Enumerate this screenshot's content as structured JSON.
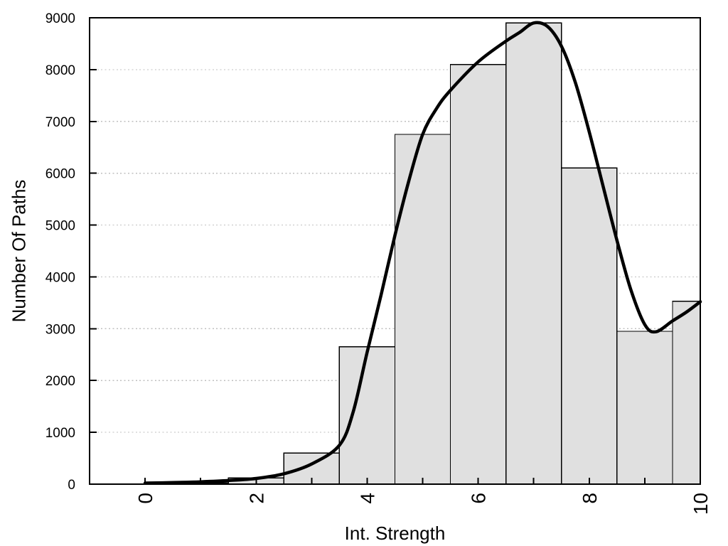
{
  "chart_data": {
    "type": "bar",
    "subtype": "histogram_with_smooth_curve",
    "title": "",
    "xlabel": "Int. Strength",
    "ylabel": "Number Of Paths",
    "xlim": [
      -1,
      10
    ],
    "ylim": [
      0,
      9000
    ],
    "grid": "horizontal-dotted",
    "legend": "none",
    "x_tick_positions": [
      0,
      1,
      2,
      3,
      4,
      5,
      6,
      7,
      8,
      9,
      10
    ],
    "x_tick_labels": [
      "0",
      "2",
      "4",
      "6",
      "8",
      "10"
    ],
    "x_tick_label_values": [
      0,
      2,
      4,
      6,
      8,
      10
    ],
    "x_tick_label_rotation_deg": -90,
    "y_tick_values": [
      0,
      1000,
      2000,
      3000,
      4000,
      5000,
      6000,
      7000,
      8000,
      9000
    ],
    "y_tick_labels": [
      "0",
      "1000",
      "2000",
      "3000",
      "4000",
      "5000",
      "6000",
      "7000",
      "8000",
      "9000"
    ],
    "bars": {
      "bin_width": 1,
      "centers": [
        1,
        2,
        3,
        4,
        5,
        6,
        7,
        8,
        9,
        10
      ],
      "counts": [
        25,
        120,
        600,
        2650,
        6750,
        8100,
        8900,
        6100,
        2950,
        3530
      ],
      "clip_to_xmax": true
    },
    "curve": {
      "points": [
        [
          0,
          20
        ],
        [
          0.5,
          30
        ],
        [
          1,
          45
        ],
        [
          1.5,
          70
        ],
        [
          2,
          110
        ],
        [
          2.5,
          200
        ],
        [
          3,
          390
        ],
        [
          3.5,
          750
        ],
        [
          3.75,
          1400
        ],
        [
          4,
          2550
        ],
        [
          4.25,
          3650
        ],
        [
          4.5,
          4800
        ],
        [
          4.75,
          5850
        ],
        [
          5,
          6750
        ],
        [
          5.25,
          7250
        ],
        [
          5.5,
          7600
        ],
        [
          6,
          8150
        ],
        [
          6.5,
          8550
        ],
        [
          6.75,
          8720
        ],
        [
          7,
          8900
        ],
        [
          7.25,
          8830
        ],
        [
          7.5,
          8450
        ],
        [
          7.75,
          7750
        ],
        [
          8,
          6800
        ],
        [
          8.25,
          5750
        ],
        [
          8.5,
          4700
        ],
        [
          8.75,
          3750
        ],
        [
          9,
          3080
        ],
        [
          9.2,
          2940
        ],
        [
          9.5,
          3150
        ],
        [
          9.75,
          3320
        ],
        [
          10,
          3520
        ]
      ]
    },
    "colors": {
      "background": "#ffffff",
      "bar_fill": "#e0e0e0",
      "bar_border": "#000000",
      "curve": "#000000",
      "grid": "#c0c0c0",
      "axis": "#000000",
      "text": "#000000"
    }
  }
}
